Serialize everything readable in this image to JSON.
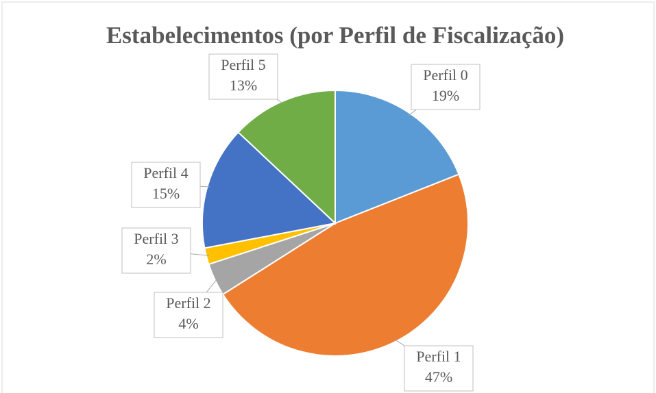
{
  "chart_data": {
    "type": "pie",
    "title": "Estabelecimentos (por Perfil de Fiscalização)",
    "categories": [
      "Perfil 0",
      "Perfil 1",
      "Perfil 2",
      "Perfil 3",
      "Perfil 4",
      "Perfil 5"
    ],
    "values": [
      19,
      47,
      4,
      2,
      15,
      13
    ],
    "value_labels": [
      "19%",
      "47%",
      "4%",
      "2%",
      "15%",
      "13%"
    ],
    "colors": [
      "#5b9bd5",
      "#ed7d31",
      "#a5a5a5",
      "#ffc000",
      "#4472c4",
      "#70ad47"
    ]
  }
}
